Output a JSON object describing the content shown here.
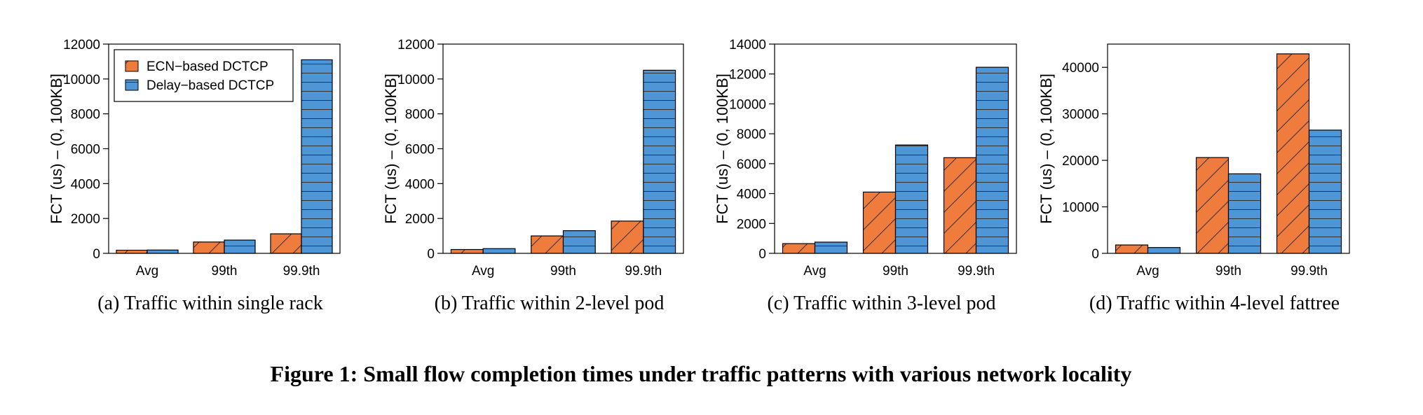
{
  "colors": {
    "ecn": "#ef7c3c",
    "delay": "#4e96d6",
    "edge": "#000000"
  },
  "chart_data": [
    {
      "type": "bar",
      "caption": "(a)  Traffic within single rack",
      "categories": [
        "Avg",
        "99th",
        "99.9th"
      ],
      "ylabel": "FCT (us) – (0, 100KB]",
      "ylim": [
        0,
        12000
      ],
      "yticks": [
        0,
        2000,
        4000,
        6000,
        8000,
        10000,
        12000
      ],
      "series": [
        {
          "name": "ECN−based DCTCP",
          "values": [
            180,
            650,
            1120
          ]
        },
        {
          "name": "Delay−based DCTCP",
          "values": [
            190,
            760,
            11100
          ]
        }
      ],
      "legend": "top-left"
    },
    {
      "type": "bar",
      "caption": "(b)  Traffic within 2-level pod",
      "categories": [
        "Avg",
        "99th",
        "99.9th"
      ],
      "ylabel": "FCT (us) – (0, 100KB]",
      "ylim": [
        0,
        12000
      ],
      "yticks": [
        0,
        2000,
        4000,
        6000,
        8000,
        10000,
        12000
      ],
      "series": [
        {
          "values": [
            220,
            1000,
            1850
          ]
        },
        {
          "values": [
            270,
            1300,
            10500
          ]
        }
      ]
    },
    {
      "type": "bar",
      "caption": "(c)  Traffic within 3-level pod",
      "categories": [
        "Avg",
        "99th",
        "99.9th"
      ],
      "ylabel": "FCT (us) – (0, 100KB]",
      "ylim": [
        0,
        14000
      ],
      "yticks": [
        0,
        2000,
        4000,
        6000,
        8000,
        10000,
        12000,
        14000
      ],
      "series": [
        {
          "values": [
            650,
            4100,
            6400
          ]
        },
        {
          "values": [
            750,
            7250,
            12450
          ]
        }
      ]
    },
    {
      "type": "bar",
      "caption": "(d)  Traffic within 4-level fattree",
      "categories": [
        "Avg",
        "99th",
        "99.9th"
      ],
      "ylabel": "FCT (us) – (0, 100KB]",
      "ylim": [
        0,
        45000
      ],
      "yticks": [
        0,
        10000,
        20000,
        30000,
        40000
      ],
      "series": [
        {
          "values": [
            1800,
            20600,
            42900
          ]
        },
        {
          "values": [
            1250,
            17100,
            26500
          ]
        }
      ]
    }
  ],
  "figure_title": "Figure 1: Small flow completion times under traffic patterns with various network locality"
}
